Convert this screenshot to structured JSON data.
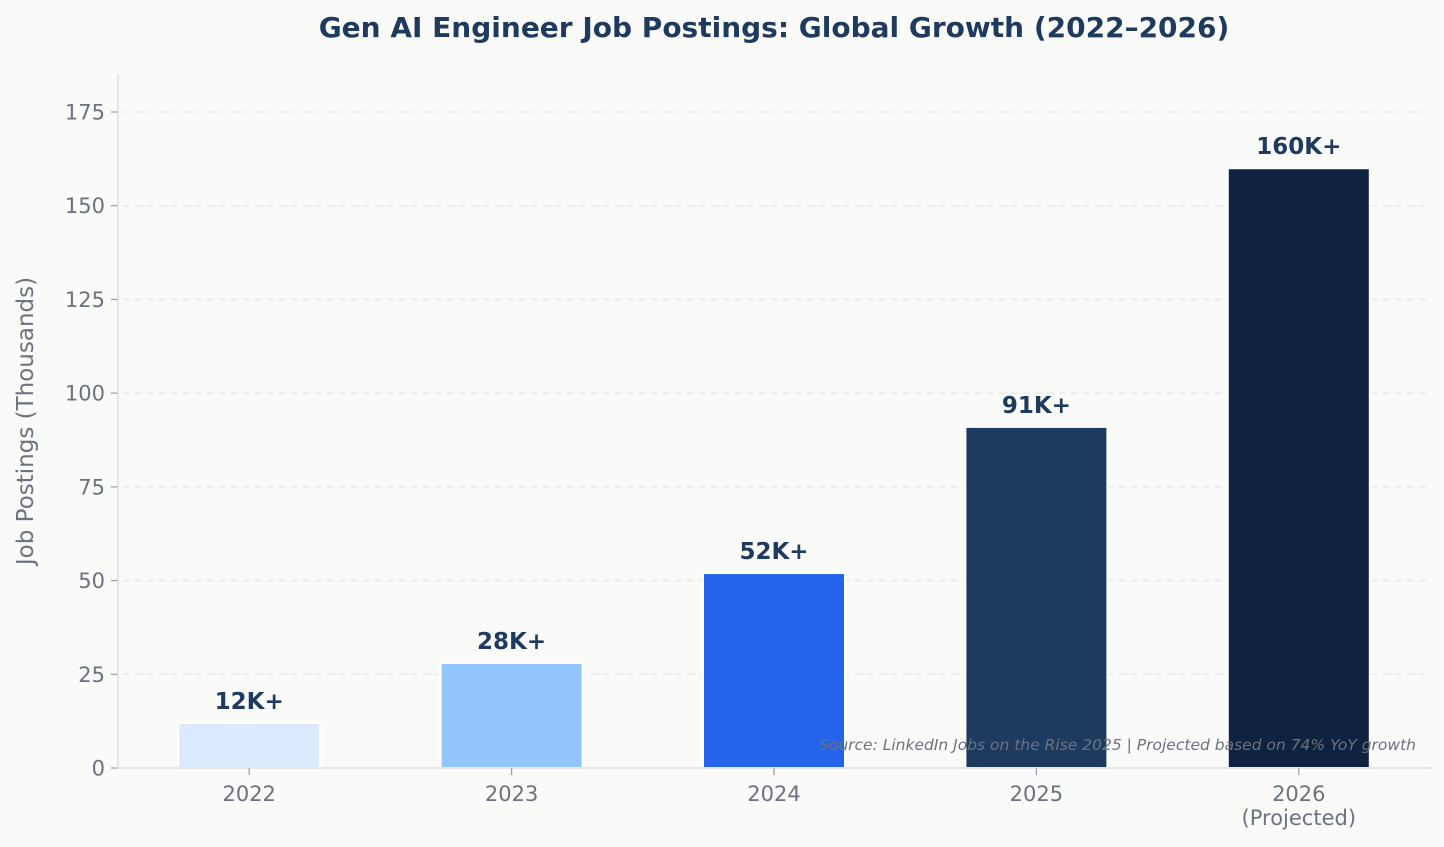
{
  "chart_data": {
    "type": "bar",
    "title": "Gen AI Engineer Job Postings: Global Growth (2022–2026)",
    "xlabel": "",
    "ylabel": "Job Postings (Thousands)",
    "ylim": [
      0,
      185
    ],
    "yticks": [
      0,
      25,
      50,
      75,
      100,
      125,
      150,
      175
    ],
    "categories": [
      [
        "2022"
      ],
      [
        "2023"
      ],
      [
        "2024"
      ],
      [
        "2025"
      ],
      [
        "2026",
        "(Projected)"
      ]
    ],
    "values": [
      12,
      28,
      52,
      91,
      160
    ],
    "data_labels": [
      "12K+",
      "28K+",
      "52K+",
      "91K+",
      "160K+"
    ],
    "colors": [
      "#dbeafe",
      "#93c5fd",
      "#2563eb",
      "#1e3a5f",
      "#0f2240"
    ],
    "grid": "horizontal-dashed",
    "legend": "none",
    "source_note": "Source: LinkedIn Jobs on the Rise 2025 | Projected based on 74% YoY growth"
  }
}
